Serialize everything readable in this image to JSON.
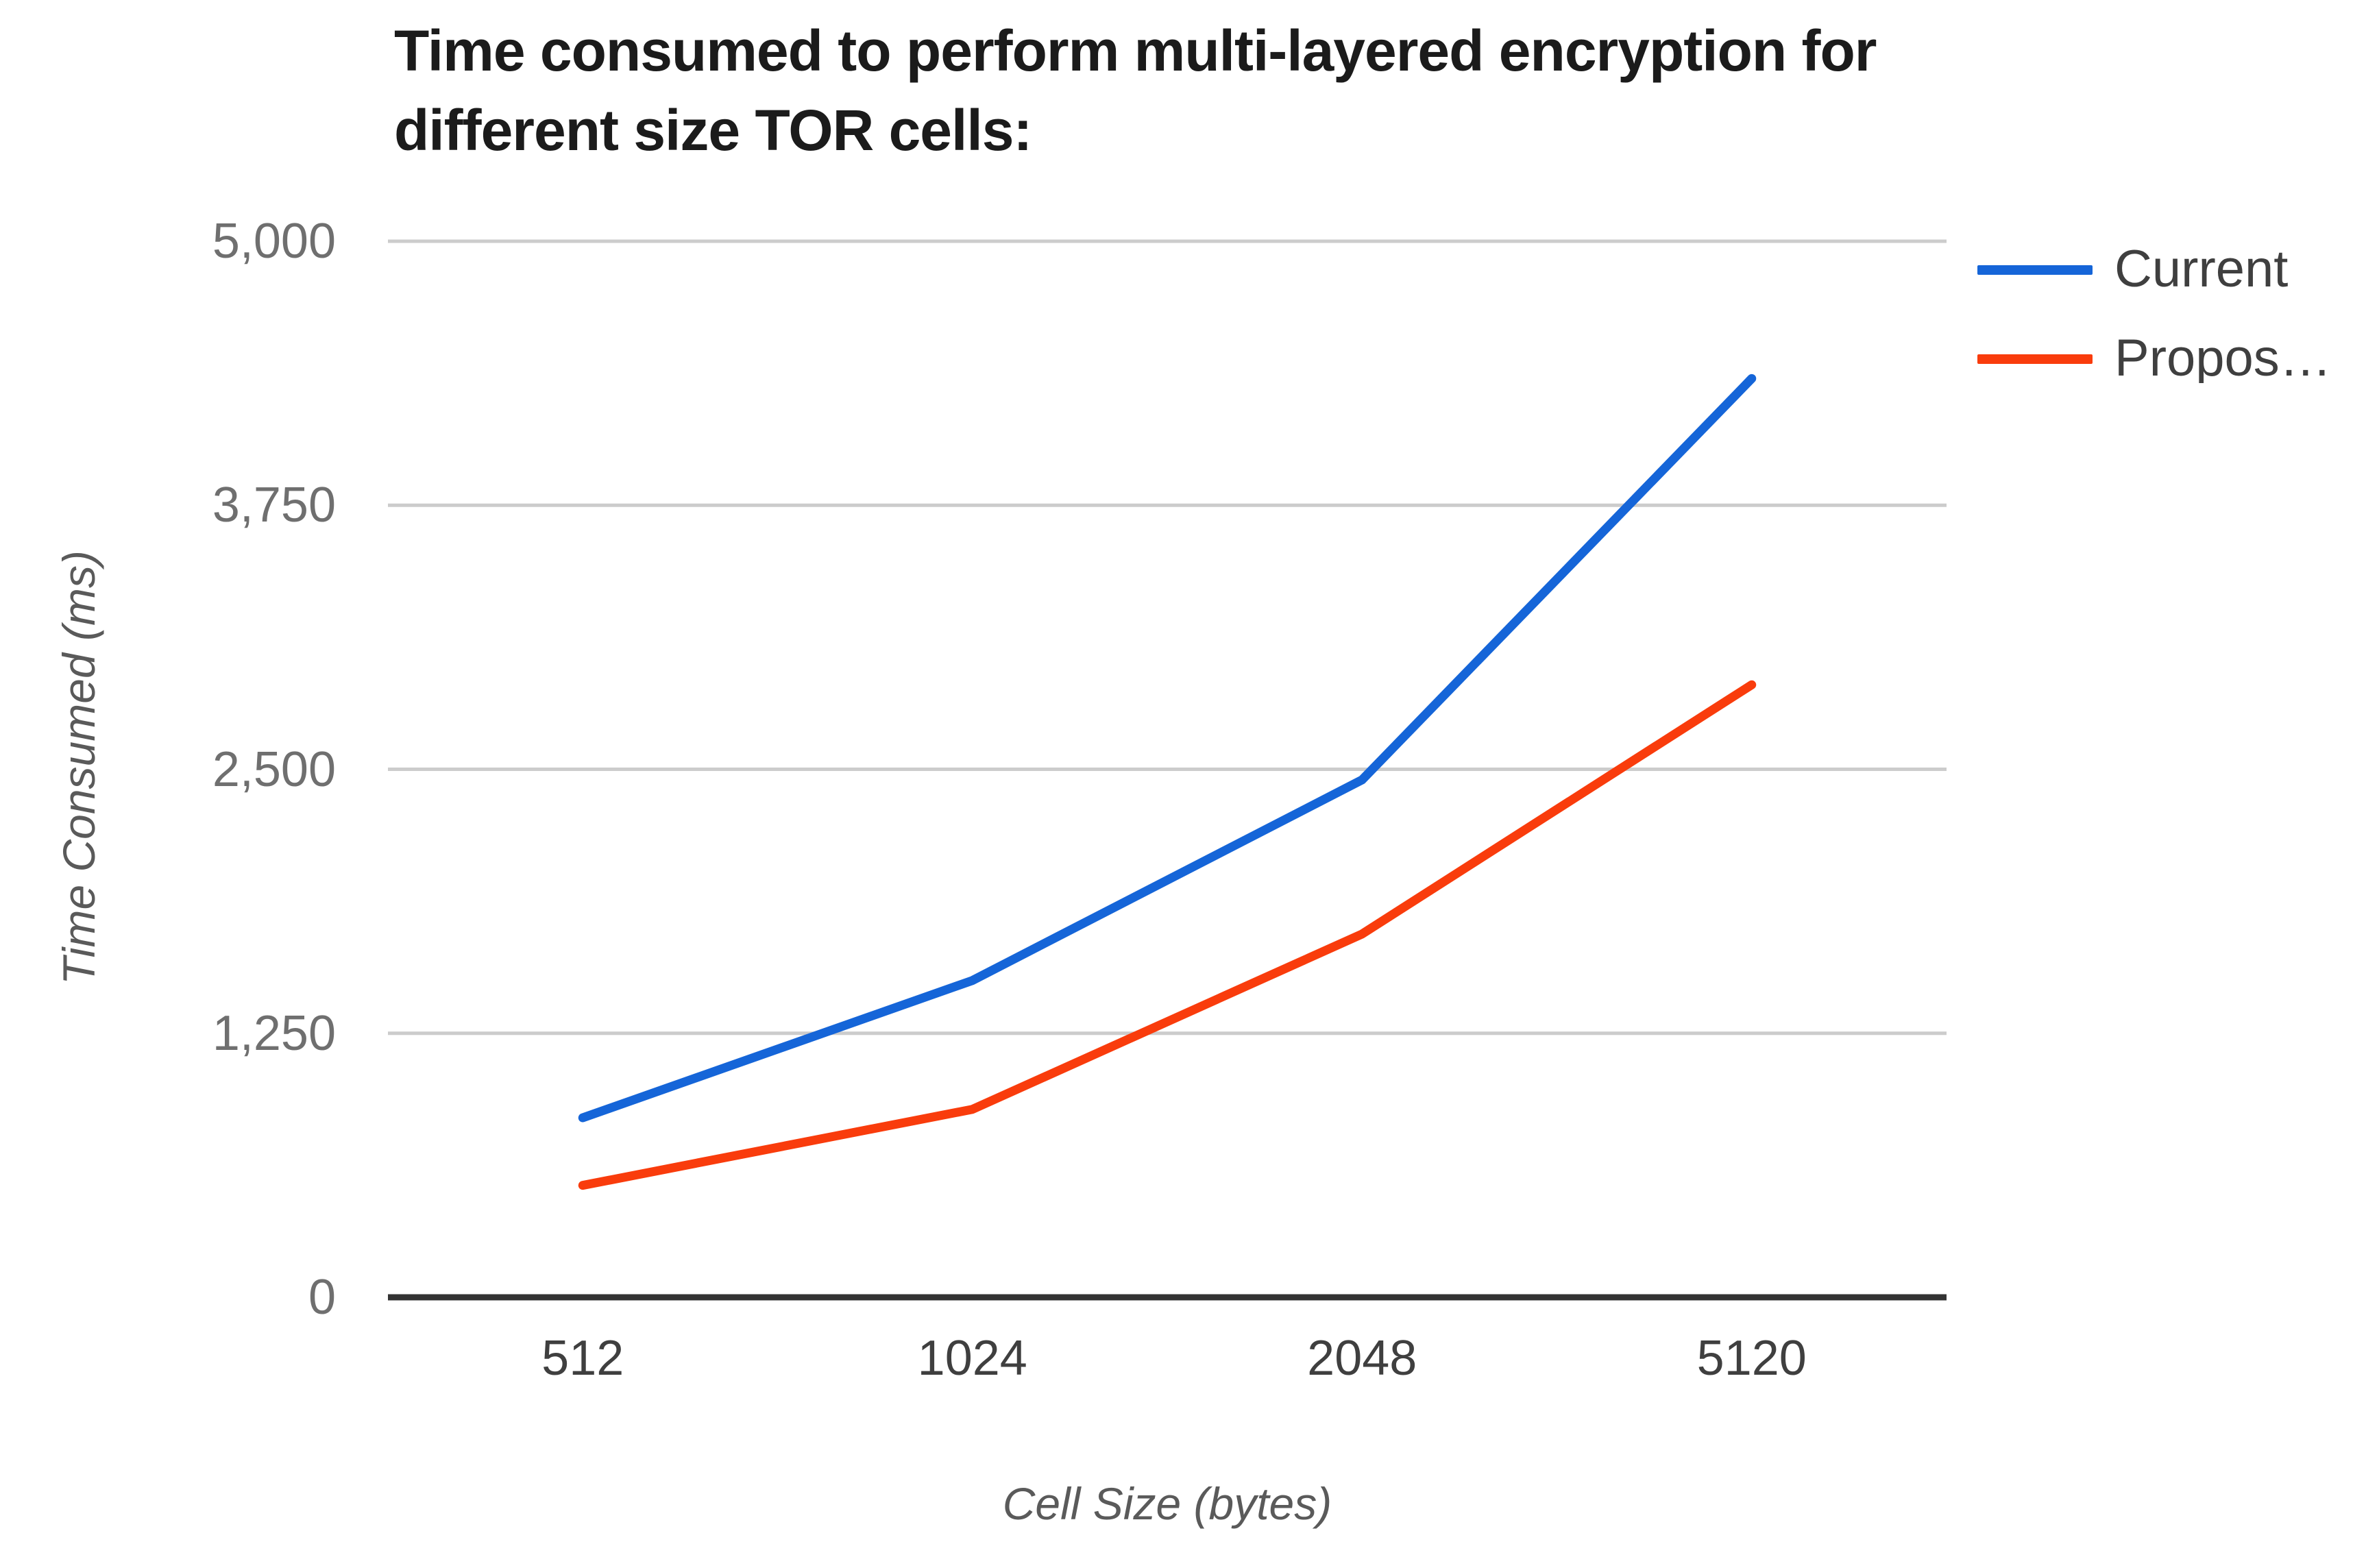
{
  "title": {
    "line1": "Time consumed to perform multi-layered encryption for",
    "line2": "different size TOR cells:"
  },
  "chart_data": {
    "type": "line",
    "title": "Time consumed to perform multi-layered encryption for different size TOR cells:",
    "xlabel": "Cell Size (bytes)",
    "ylabel": "Time Consumed (ms)",
    "categories": [
      "512",
      "1024",
      "2048",
      "5120"
    ],
    "series": [
      {
        "name": "Current",
        "color": "#1565d8",
        "values": [
          850,
          1500,
          2450,
          4350
        ]
      },
      {
        "name": "Propos…",
        "color": "#f93c0c",
        "values": [
          530,
          890,
          1720,
          2900
        ]
      }
    ],
    "ylim": [
      0,
      5000
    ],
    "y_tick_values": [
      0,
      1250,
      2500,
      3750,
      5000
    ],
    "y_tick_labels": [
      "0",
      "1,250",
      "2,500",
      "3,750",
      "5,000"
    ],
    "grid": true,
    "legend_position": "right",
    "axis_color": "#333333",
    "gridline_color": "#cccccc"
  },
  "legend": {
    "items": [
      {
        "label": "Current",
        "color": "#1565d8"
      },
      {
        "label": "Propos…",
        "color": "#f93c0c"
      }
    ]
  }
}
